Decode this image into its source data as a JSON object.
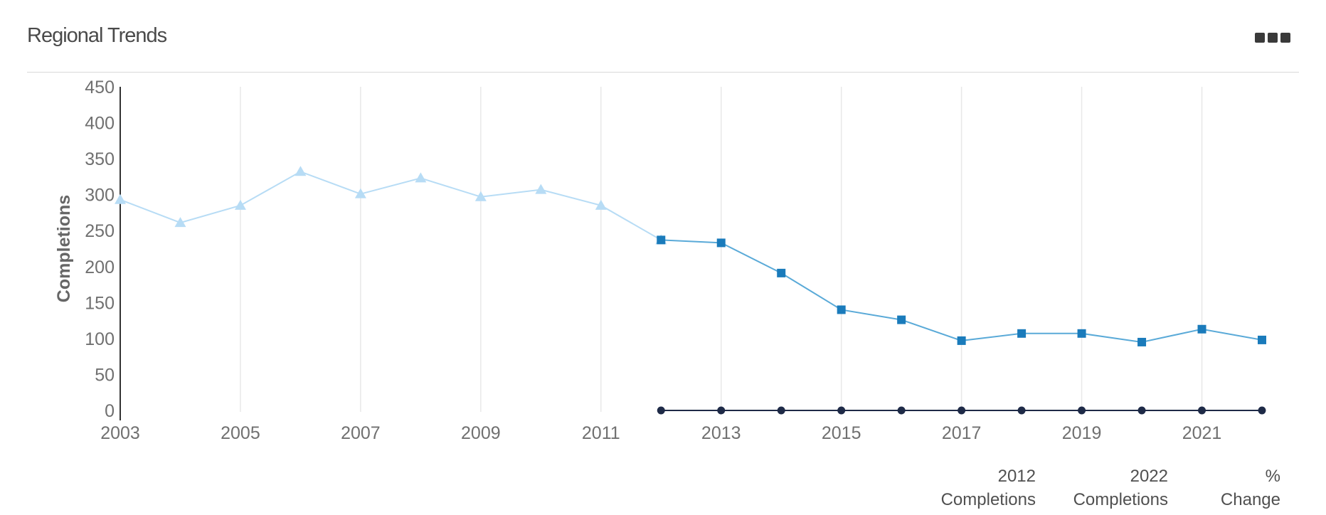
{
  "widget": {
    "title": "Regional Trends",
    "menu_icon": "more-horizontal-icon"
  },
  "table_header": {
    "col1": [
      "2012",
      "Completions"
    ],
    "col2": [
      "2022",
      "Completions"
    ],
    "col3": [
      "%",
      "Change"
    ]
  },
  "chart_data": {
    "type": "line",
    "ylabel": "Completions",
    "xlabel": "",
    "ylim": [
      0,
      450
    ],
    "xlim": [
      2003,
      2022
    ],
    "y_ticks": [
      0,
      50,
      100,
      150,
      200,
      250,
      300,
      350,
      400,
      450
    ],
    "x_ticks": [
      2003,
      2005,
      2007,
      2009,
      2011,
      2013,
      2015,
      2017,
      2019,
      2021
    ],
    "grid": "vertical",
    "legend": "none",
    "series": [
      {
        "marker": "triangle",
        "color": "#b7dcf5",
        "x": [
          2003,
          2004,
          2005,
          2006,
          2007,
          2008,
          2009,
          2010,
          2011,
          2012
        ],
        "values": [
          293,
          261,
          285,
          332,
          301,
          323,
          297,
          307,
          285,
          237
        ]
      },
      {
        "marker": "square",
        "color": "#1a7bbb",
        "line_color": "#5aaad8",
        "x": [
          2012,
          2013,
          2014,
          2015,
          2016,
          2017,
          2018,
          2019,
          2020,
          2021,
          2022
        ],
        "values": [
          237,
          233,
          191,
          140,
          126,
          97,
          107,
          107,
          95,
          113,
          98
        ]
      },
      {
        "marker": "circle",
        "color": "#1e2a47",
        "x": [
          2012,
          2013,
          2014,
          2015,
          2016,
          2017,
          2018,
          2019,
          2020,
          2021,
          2022
        ],
        "values": [
          0,
          0,
          0,
          0,
          0,
          0,
          0,
          0,
          0,
          0,
          0
        ]
      }
    ]
  }
}
